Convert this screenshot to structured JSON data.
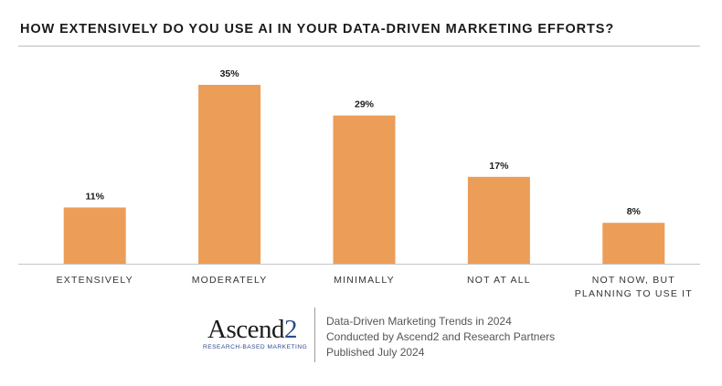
{
  "chart_data": {
    "type": "bar",
    "title": "HOW EXTENSIVELY DO YOU USE AI IN YOUR DATA-DRIVEN MARKETING EFFORTS?",
    "categories": [
      [
        "EXTENSIVELY"
      ],
      [
        "MODERATELY"
      ],
      [
        "MINIMALLY"
      ],
      [
        "NOT AT ALL"
      ],
      [
        "NOT NOW, BUT",
        "PLANNING TO USE IT"
      ]
    ],
    "values": [
      11,
      35,
      29,
      17,
      8
    ],
    "data_labels": [
      "11%",
      "35%",
      "29%",
      "17%",
      "8%"
    ],
    "unit": "%",
    "ylim": [
      0,
      40
    ],
    "grid": false,
    "bar_color": "#EC9D58"
  },
  "logo": {
    "name_main": "Ascend",
    "name_accent": "2",
    "tagline": "RESEARCH-BASED MARKETING"
  },
  "footer": {
    "line1": "Data-Driven Marketing Trends in 2024",
    "line2": "Conducted by Ascend2 and Research Partners",
    "line3": "Published July 2024"
  }
}
